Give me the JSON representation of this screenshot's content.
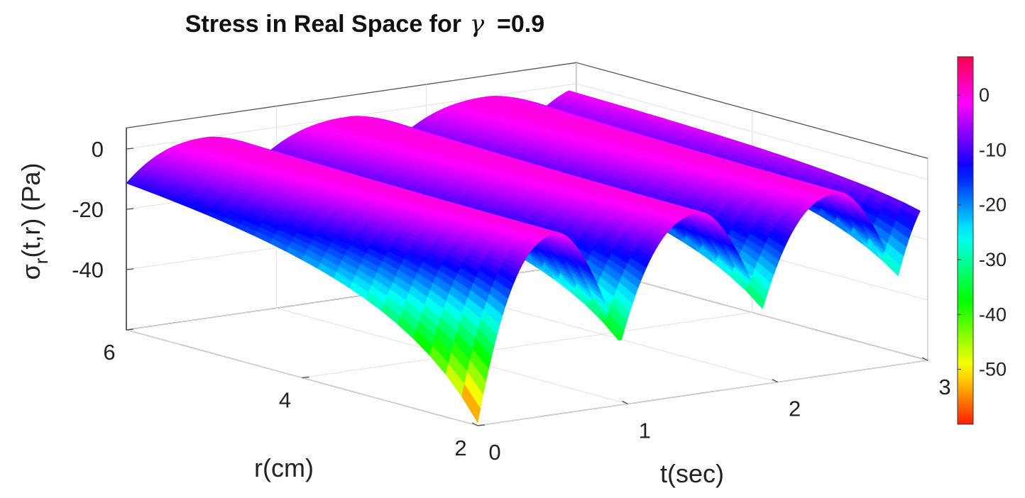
{
  "chart_data": {
    "type": "surface",
    "title": "Stress in Real Space for",
    "title_symbol": "γ",
    "title_value": "=0.9",
    "xlabel": "t(sec)",
    "ylabel": "r(cm)",
    "zlabel": {
      "prefix": "σ",
      "subscript": "r",
      "suffix": "(t,r) (Pa)"
    },
    "xlim": [
      0,
      3
    ],
    "ylim": [
      2,
      6
    ],
    "zlim": [
      -60,
      0
    ],
    "x_ticks": [
      {
        "value": 0,
        "label": "0"
      },
      {
        "value": 1,
        "label": "1"
      },
      {
        "value": 2,
        "label": "2"
      },
      {
        "value": 3,
        "label": "3"
      }
    ],
    "y_ticks": [
      {
        "value": 2,
        "label": "2"
      },
      {
        "value": 4,
        "label": "4"
      },
      {
        "value": 6,
        "label": "6"
      }
    ],
    "z_ticks": [
      {
        "value": 0,
        "label": "0"
      },
      {
        "value": -20,
        "label": "-20"
      },
      {
        "value": -40,
        "label": "-40"
      }
    ],
    "colorbar": {
      "min": -60,
      "max": 7,
      "colormap": "hsv",
      "ticks": [
        {
          "value": 0,
          "label": "0"
        },
        {
          "value": -10,
          "label": "-10"
        },
        {
          "value": -20,
          "label": "-20"
        },
        {
          "value": -30,
          "label": "-30"
        },
        {
          "value": -40,
          "label": "-40"
        },
        {
          "value": -50,
          "label": "-50"
        }
      ]
    },
    "minima": [
      {
        "t": 0.0,
        "r": 2,
        "sigma": -59
      },
      {
        "t": 0.95,
        "r": 2,
        "sigma": -40
      },
      {
        "t": 1.9,
        "r": 2,
        "sigma": -35
      },
      {
        "t": 2.8,
        "r": 2,
        "sigma": -31
      }
    ],
    "grid": true
  }
}
